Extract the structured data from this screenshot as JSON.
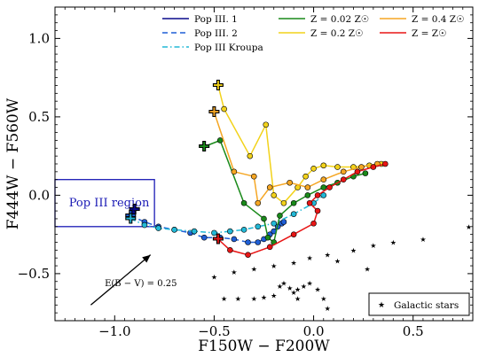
{
  "chart_data": {
    "type": "scatter",
    "xlabel": "F150W − F200W",
    "ylabel": "F444W − F560W",
    "xlim": [
      -1.3,
      0.8
    ],
    "ylim": [
      -0.8,
      1.2
    ],
    "x_ticks": [
      -1.0,
      -0.5,
      0.0,
      0.5
    ],
    "x_tick_labels": [
      "−1.0",
      "−0.5",
      "0.0",
      "0.5"
    ],
    "y_ticks": [
      -0.5,
      0.0,
      0.5,
      1.0
    ],
    "y_tick_labels": [
      "−0.5",
      "0.0",
      "0.5",
      "1.0"
    ],
    "grid": false,
    "legend_position": "top",
    "legend": [
      {
        "label": "Pop III. 1",
        "color": "#0a0a8c",
        "style": "solid"
      },
      {
        "label": "Pop III. 2",
        "color": "#1f5fd6",
        "style": "dashed"
      },
      {
        "label": "Pop III Kroupa",
        "color": "#22b8d6",
        "style": "dashdot"
      },
      {
        "label": "Z = 0.02 Z☉",
        "color": "#1a8a1a",
        "style": "solid"
      },
      {
        "label": "Z = 0.2 Z☉",
        "color": "#f2d21a",
        "style": "solid"
      },
      {
        "label": "Z = 0.4 Z☉",
        "color": "#f5a623",
        "style": "solid"
      },
      {
        "label": "Z = Z☉",
        "color": "#e81515",
        "style": "solid"
      }
    ],
    "inset_legend": {
      "label": "Galactic stars"
    },
    "region": {
      "label": "Pop III region",
      "x": [
        -1.3,
        -0.8
      ],
      "y": [
        -0.2,
        0.1
      ],
      "color": "#1a1ab5"
    },
    "reddening_arrow": {
      "label": "E(B − V) = 0.25",
      "from": [
        -1.12,
        -0.7
      ],
      "to": [
        -0.82,
        -0.38
      ]
    },
    "series": [
      {
        "name": "Pop III. 1",
        "color": "#0a0a8c",
        "style": "solid",
        "points": [
          [
            -0.9,
            -0.09
          ],
          [
            -0.91,
            -0.11
          ],
          [
            -0.92,
            -0.13
          ]
        ]
      },
      {
        "name": "Pop III. 2",
        "color": "#1f5fd6",
        "style": "dashed",
        "points": [
          [
            -0.92,
            -0.13
          ],
          [
            -0.85,
            -0.17
          ],
          [
            -0.78,
            -0.2
          ],
          [
            -0.7,
            -0.22
          ],
          [
            -0.62,
            -0.24
          ],
          [
            -0.55,
            -0.27
          ],
          [
            -0.47,
            -0.27
          ],
          [
            -0.4,
            -0.28
          ],
          [
            -0.33,
            -0.3
          ],
          [
            -0.28,
            -0.3
          ],
          [
            -0.25,
            -0.28
          ],
          [
            -0.22,
            -0.25
          ],
          [
            -0.2,
            -0.23
          ],
          [
            -0.18,
            -0.2
          ],
          [
            -0.16,
            -0.18
          ],
          [
            -0.15,
            -0.17
          ]
        ]
      },
      {
        "name": "Pop III Kroupa",
        "color": "#22b8d6",
        "style": "dashdot",
        "points": [
          [
            -0.92,
            -0.15
          ],
          [
            -0.85,
            -0.19
          ],
          [
            -0.78,
            -0.21
          ],
          [
            -0.7,
            -0.22
          ],
          [
            -0.6,
            -0.23
          ],
          [
            -0.5,
            -0.24
          ],
          [
            -0.42,
            -0.23
          ],
          [
            -0.35,
            -0.22
          ],
          [
            -0.28,
            -0.2
          ],
          [
            -0.2,
            -0.18
          ],
          [
            -0.1,
            -0.12
          ],
          [
            0.0,
            -0.05
          ],
          [
            0.05,
            0.0
          ]
        ]
      },
      {
        "name": "Z = 0.02 Z☉",
        "color": "#1a8a1a",
        "style": "solid",
        "points": [
          [
            -0.55,
            0.31
          ],
          [
            -0.47,
            0.35
          ],
          [
            -0.35,
            -0.05
          ],
          [
            -0.25,
            -0.15
          ],
          [
            -0.23,
            -0.27
          ],
          [
            -0.2,
            -0.3
          ],
          [
            -0.17,
            -0.13
          ],
          [
            -0.1,
            -0.05
          ],
          [
            -0.03,
            0.0
          ],
          [
            0.05,
            0.05
          ],
          [
            0.12,
            0.08
          ],
          [
            0.2,
            0.12
          ],
          [
            0.26,
            0.14
          ]
        ]
      },
      {
        "name": "Z = 0.2 Z☉",
        "color": "#f2d21a",
        "style": "solid",
        "points": [
          [
            -0.48,
            0.7
          ],
          [
            -0.45,
            0.55
          ],
          [
            -0.32,
            0.25
          ],
          [
            -0.24,
            0.45
          ],
          [
            -0.2,
            0.0
          ],
          [
            -0.15,
            -0.05
          ],
          [
            -0.08,
            0.05
          ],
          [
            -0.04,
            0.12
          ],
          [
            0.0,
            0.17
          ],
          [
            0.05,
            0.19
          ],
          [
            0.12,
            0.18
          ],
          [
            0.2,
            0.18
          ],
          [
            0.28,
            0.19
          ],
          [
            0.34,
            0.2
          ]
        ]
      },
      {
        "name": "Z = 0.4 Z☉",
        "color": "#f5a623",
        "style": "solid",
        "points": [
          [
            -0.5,
            0.53
          ],
          [
            -0.4,
            0.15
          ],
          [
            -0.3,
            0.12
          ],
          [
            -0.28,
            -0.05
          ],
          [
            -0.22,
            0.05
          ],
          [
            -0.12,
            0.08
          ],
          [
            -0.03,
            0.05
          ],
          [
            0.05,
            0.1
          ],
          [
            0.15,
            0.15
          ],
          [
            0.24,
            0.18
          ],
          [
            0.32,
            0.2
          ]
        ]
      },
      {
        "name": "Z = Z☉",
        "color": "#e81515",
        "style": "solid",
        "points": [
          [
            -0.48,
            -0.28
          ],
          [
            -0.42,
            -0.35
          ],
          [
            -0.33,
            -0.38
          ],
          [
            -0.22,
            -0.33
          ],
          [
            -0.1,
            -0.25
          ],
          [
            0.0,
            -0.18
          ],
          [
            0.02,
            -0.1
          ],
          [
            -0.02,
            -0.05
          ],
          [
            0.02,
            0.0
          ],
          [
            0.08,
            0.05
          ],
          [
            0.15,
            0.1
          ],
          [
            0.22,
            0.15
          ],
          [
            0.3,
            0.18
          ],
          [
            0.36,
            0.2
          ]
        ]
      },
      {
        "name": "Galactic stars",
        "color": "#000000",
        "style": "markers",
        "points": [
          [
            -0.5,
            -0.52
          ],
          [
            -0.4,
            -0.49
          ],
          [
            -0.3,
            -0.47
          ],
          [
            -0.2,
            -0.45
          ],
          [
            -0.1,
            -0.43
          ],
          [
            -0.02,
            -0.4
          ],
          [
            0.07,
            -0.38
          ],
          [
            0.2,
            -0.35
          ],
          [
            0.3,
            -0.32
          ],
          [
            0.4,
            -0.3
          ],
          [
            0.55,
            -0.28
          ],
          [
            0.78,
            -0.2
          ],
          [
            0.27,
            -0.47
          ],
          [
            0.12,
            -0.42
          ],
          [
            -0.45,
            -0.66
          ],
          [
            -0.38,
            -0.66
          ],
          [
            -0.3,
            -0.66
          ],
          [
            -0.25,
            -0.65
          ],
          [
            -0.2,
            -0.64
          ],
          [
            -0.17,
            -0.58
          ],
          [
            -0.15,
            -0.56
          ],
          [
            -0.12,
            -0.59
          ],
          [
            -0.1,
            -0.62
          ],
          [
            -0.08,
            -0.6
          ],
          [
            -0.05,
            -0.58
          ],
          [
            -0.02,
            -0.56
          ],
          [
            0.02,
            -0.6
          ],
          [
            0.05,
            -0.66
          ],
          [
            0.07,
            -0.72
          ],
          [
            -0.08,
            -0.66
          ]
        ]
      }
    ]
  }
}
